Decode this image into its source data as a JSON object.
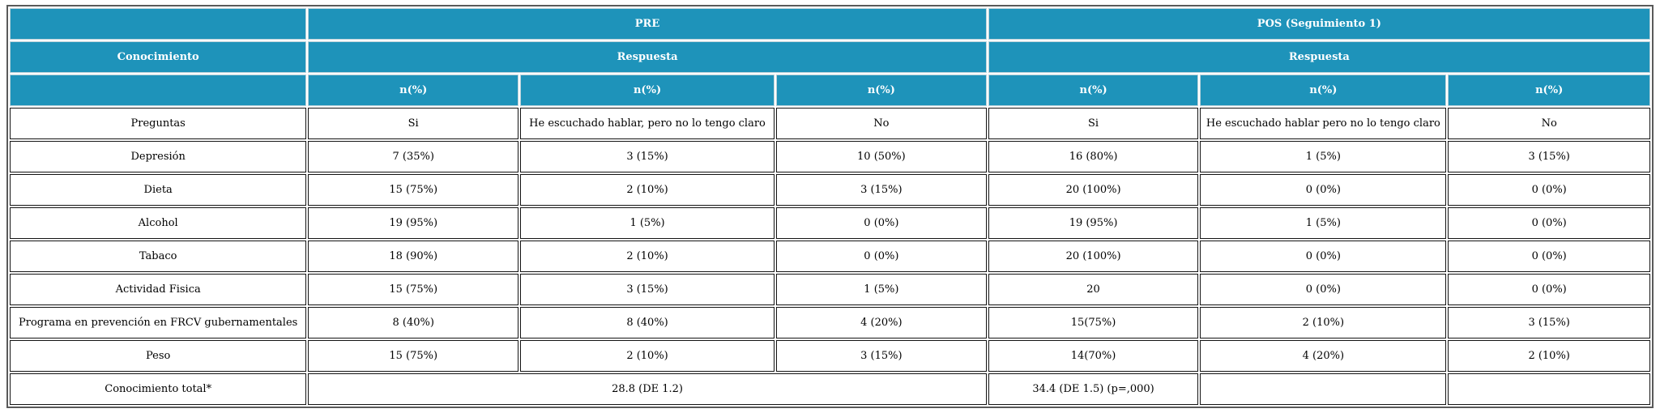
{
  "table": {
    "header": {
      "pre_label": "PRE",
      "pos_label": "POS (Seguimiento 1)",
      "conocimiento_label": "Conocimiento",
      "respuesta_pre_label": "Respuesta",
      "respuesta_pos_label": "Respuesta",
      "npct": [
        "n(%)",
        "n(%)",
        "n(%)",
        "n(%)",
        "n(%)",
        "n(%)"
      ]
    },
    "preguntas": {
      "label": "Preguntas",
      "cells": [
        "Si",
        "He escuchado hablar, pero no lo tengo claro",
        "No",
        "Si",
        "He escuchado hablar pero no lo tengo claro",
        "No"
      ]
    },
    "rows": [
      {
        "label": "Depresión",
        "cells": [
          "7 (35%)",
          "3 (15%)",
          "10 (50%)",
          "16 (80%)",
          "1 (5%)",
          "3 (15%)"
        ]
      },
      {
        "label": "Dieta",
        "cells": [
          "15 (75%)",
          "2 (10%)",
          "3 (15%)",
          "20 (100%)",
          "0 (0%)",
          "0 (0%)"
        ]
      },
      {
        "label": "Alcohol",
        "cells": [
          "19 (95%)",
          "1 (5%)",
          "0 (0%)",
          "19 (95%)",
          "1 (5%)",
          "0 (0%)"
        ]
      },
      {
        "label": "Tabaco",
        "cells": [
          "18 (90%)",
          "2 (10%)",
          "0 (0%)",
          "20 (100%)",
          "0 (0%)",
          "0 (0%)"
        ]
      },
      {
        "label": "Actividad Fisica",
        "cells": [
          "15 (75%)",
          "3 (15%)",
          "1 (5%)",
          "20",
          "0 (0%)",
          "0 (0%)"
        ]
      },
      {
        "label": "Programa en prevención en FRCV gubernamentales",
        "cells": [
          "8 (40%)",
          "8 (40%)",
          "4 (20%)",
          "15(75%)",
          "2 (10%)",
          "3 (15%)"
        ]
      },
      {
        "label": "Peso",
        "cells": [
          "15 (75%)",
          "2 (10%)",
          "3 (15%)",
          "14(70%)",
          "4 (20%)",
          "2 (10%)"
        ]
      }
    ],
    "total": {
      "label": "Conocimiento total*",
      "pre_value": "28.8 (DE 1.2)",
      "pos_si_value": "34.4 (DE 1.5) (p=,000)",
      "pos_mid_value": "",
      "pos_no_value": ""
    },
    "colors": {
      "header_bg": "#1e93ba",
      "header_text": "#ffffff",
      "body_text": "#000000",
      "cell_border": "#141414",
      "outer_border": "#5a5a5a"
    }
  }
}
